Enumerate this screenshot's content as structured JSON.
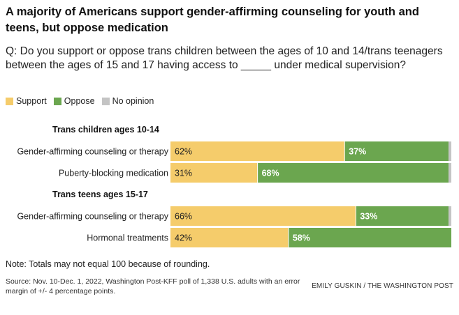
{
  "title": "A majority of Americans support gender-affirming counseling for youth and teens, but oppose medication",
  "question": "Q: Do you support or oppose trans children between the ages of 10 and 14/trans teenagers between the ages of 15 and 17 having access to _____ under medical supervision?",
  "legend": [
    {
      "label": "Support",
      "color": "#f5cc6b"
    },
    {
      "label": "Oppose",
      "color": "#6ba64f"
    },
    {
      "label": "No opinion",
      "color": "#c4c4c4"
    }
  ],
  "chart_data": {
    "type": "bar",
    "orientation": "horizontal",
    "stacked": true,
    "xlim": [
      0,
      100
    ],
    "unit": "%",
    "groups": [
      {
        "label": "Trans children ages 10-14",
        "rows": [
          {
            "label": "Gender-affirming counseling or therapy",
            "support": 62,
            "oppose": 37,
            "no_opinion": 1
          },
          {
            "label": "Puberty-blocking medication",
            "support": 31,
            "oppose": 68,
            "no_opinion": 1
          }
        ]
      },
      {
        "label": "Trans teens ages 15-17",
        "rows": [
          {
            "label": "Gender-affirming counseling or therapy",
            "support": 66,
            "oppose": 33,
            "no_opinion": 1
          },
          {
            "label": "Hormonal treatments",
            "support": 42,
            "oppose": 58,
            "no_opinion": 1
          }
        ]
      }
    ]
  },
  "note": "Note: Totals may not equal 100 because of rounding.",
  "source": "Source: Nov. 10-Dec. 1, 2022, Washington Post-KFF poll of 1,338 U.S. adults with an error margin of +/- 4 percentage points.",
  "credit": "EMILY GUSKIN / THE WASHINGTON POST"
}
